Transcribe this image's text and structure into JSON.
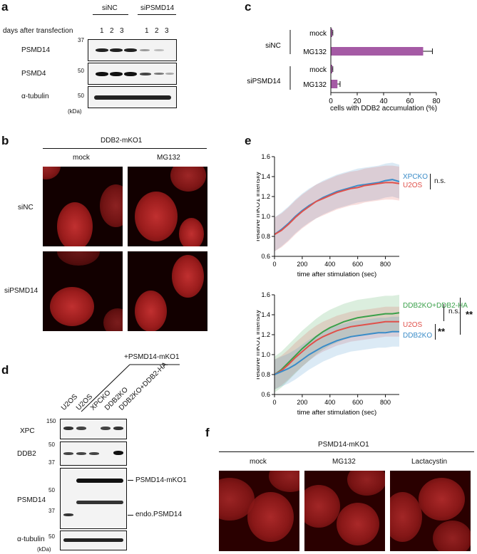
{
  "panels": {
    "a": {
      "label": "a",
      "groups": [
        "siNC",
        "siPSMD14"
      ],
      "days_label": "days after transfection",
      "days": [
        "1",
        "2",
        "3",
        "1",
        "2",
        "3"
      ],
      "rows": [
        "PSMD14",
        "PSMD4",
        "α-tubulin"
      ],
      "markers": [
        "37",
        "50",
        "50"
      ],
      "kda": "(kDa)"
    },
    "b": {
      "label": "b",
      "title": "DDB2-mKO1",
      "cols": [
        "mock",
        "MG132"
      ],
      "rows": [
        "siNC",
        "siPSMD14"
      ]
    },
    "c": {
      "label": "c",
      "groups": [
        "siNC",
        "siPSMD14"
      ],
      "xlabel": "cells with DDB2 accumulation (%)"
    },
    "d": {
      "label": "d",
      "header": "+PSMD14-mKO1",
      "lanes": [
        "U2OS",
        "U2OS",
        "XPCKO",
        "DDB2KO",
        "DDB2KO+DDB2-HA"
      ],
      "rows": [
        "XPC",
        "DDB2",
        "PSMD14",
        "α-tubulin"
      ],
      "markers": [
        "150",
        "50",
        "37",
        "50",
        "37",
        "50"
      ],
      "band_labels": [
        "PSMD14-mKO1",
        "endo.PSMD14"
      ],
      "kda": "(kDa)"
    },
    "e": {
      "label": "e",
      "ns": "n.s.",
      "sig": "**"
    },
    "f": {
      "label": "f",
      "title": "PSMD14-mKO1",
      "cols": [
        "mock",
        "MG132",
        "Lactacystin"
      ]
    }
  },
  "chart_data": [
    {
      "type": "bar",
      "orientation": "horizontal",
      "categories": [
        "mock",
        "MG132",
        "mock",
        "MG132"
      ],
      "groups": [
        "siNC",
        "siNC",
        "siPSMD14",
        "siPSMD14"
      ],
      "values": [
        1,
        70,
        1,
        5
      ],
      "errors": [
        0.5,
        7,
        0.5,
        2
      ],
      "xlabel": "cells with DDB2 accumulation (%)",
      "xlim": [
        0,
        80
      ],
      "xticks": [
        0,
        20,
        40,
        60,
        80
      ],
      "color": "#a55aa5"
    },
    {
      "type": "line",
      "xlabel": "time after stimulation (sec)",
      "ylabel": "relative mKO1 intensity",
      "xlim": [
        0,
        900
      ],
      "ylim": [
        0.6,
        1.6
      ],
      "xticks": [
        0,
        200,
        400,
        600,
        800
      ],
      "yticks": [
        0.6,
        0.8,
        1.0,
        1.2,
        1.4,
        1.6
      ],
      "series": [
        {
          "name": "XPCKO",
          "color": "#3a8cc8",
          "x": [
            0,
            50,
            100,
            150,
            200,
            250,
            300,
            350,
            400,
            450,
            500,
            550,
            600,
            650,
            700,
            750,
            800,
            850,
            900
          ],
          "y": [
            0.82,
            0.87,
            0.93,
            1.0,
            1.06,
            1.11,
            1.15,
            1.19,
            1.22,
            1.25,
            1.27,
            1.29,
            1.31,
            1.32,
            1.33,
            1.34,
            1.36,
            1.37,
            1.35
          ],
          "band": 0.17
        },
        {
          "name": "U2OS",
          "color": "#e0504a",
          "x": [
            0,
            50,
            100,
            150,
            200,
            250,
            300,
            350,
            400,
            450,
            500,
            550,
            600,
            650,
            700,
            750,
            800,
            850,
            900
          ],
          "y": [
            0.82,
            0.86,
            0.92,
            0.99,
            1.05,
            1.1,
            1.15,
            1.18,
            1.21,
            1.24,
            1.26,
            1.28,
            1.29,
            1.31,
            1.32,
            1.33,
            1.34,
            1.34,
            1.33
          ],
          "band": 0.17
        }
      ]
    },
    {
      "type": "line",
      "xlabel": "time after stimulation (sec)",
      "ylabel": "relative mKO1 intensity",
      "xlim": [
        0,
        900
      ],
      "ylim": [
        0.6,
        1.6
      ],
      "xticks": [
        0,
        200,
        400,
        600,
        800
      ],
      "yticks": [
        0.6,
        0.8,
        1.0,
        1.2,
        1.4,
        1.6
      ],
      "series": [
        {
          "name": "DDB2KO+DDB2-HA",
          "color": "#3aa04a",
          "x": [
            0,
            50,
            100,
            150,
            200,
            250,
            300,
            350,
            400,
            450,
            500,
            550,
            600,
            650,
            700,
            750,
            800,
            850,
            900
          ],
          "y": [
            0.8,
            0.85,
            0.92,
            0.99,
            1.06,
            1.12,
            1.18,
            1.23,
            1.27,
            1.3,
            1.33,
            1.35,
            1.37,
            1.38,
            1.39,
            1.4,
            1.41,
            1.41,
            1.42
          ],
          "band": 0.18
        },
        {
          "name": "U2OS",
          "color": "#e0504a",
          "x": [
            0,
            50,
            100,
            150,
            200,
            250,
            300,
            350,
            400,
            450,
            500,
            550,
            600,
            650,
            700,
            750,
            800,
            850,
            900
          ],
          "y": [
            0.8,
            0.84,
            0.9,
            0.97,
            1.03,
            1.09,
            1.14,
            1.18,
            1.21,
            1.24,
            1.26,
            1.28,
            1.29,
            1.3,
            1.31,
            1.32,
            1.33,
            1.33,
            1.33
          ],
          "band": 0.15
        },
        {
          "name": "DDB2KO",
          "color": "#3a8cc8",
          "x": [
            0,
            50,
            100,
            150,
            200,
            250,
            300,
            350,
            400,
            450,
            500,
            550,
            600,
            650,
            700,
            750,
            800,
            850,
            900
          ],
          "y": [
            0.8,
            0.83,
            0.86,
            0.9,
            0.95,
            1.0,
            1.04,
            1.08,
            1.11,
            1.14,
            1.16,
            1.18,
            1.19,
            1.2,
            1.21,
            1.22,
            1.22,
            1.23,
            1.23
          ],
          "band": 0.15
        }
      ]
    }
  ]
}
